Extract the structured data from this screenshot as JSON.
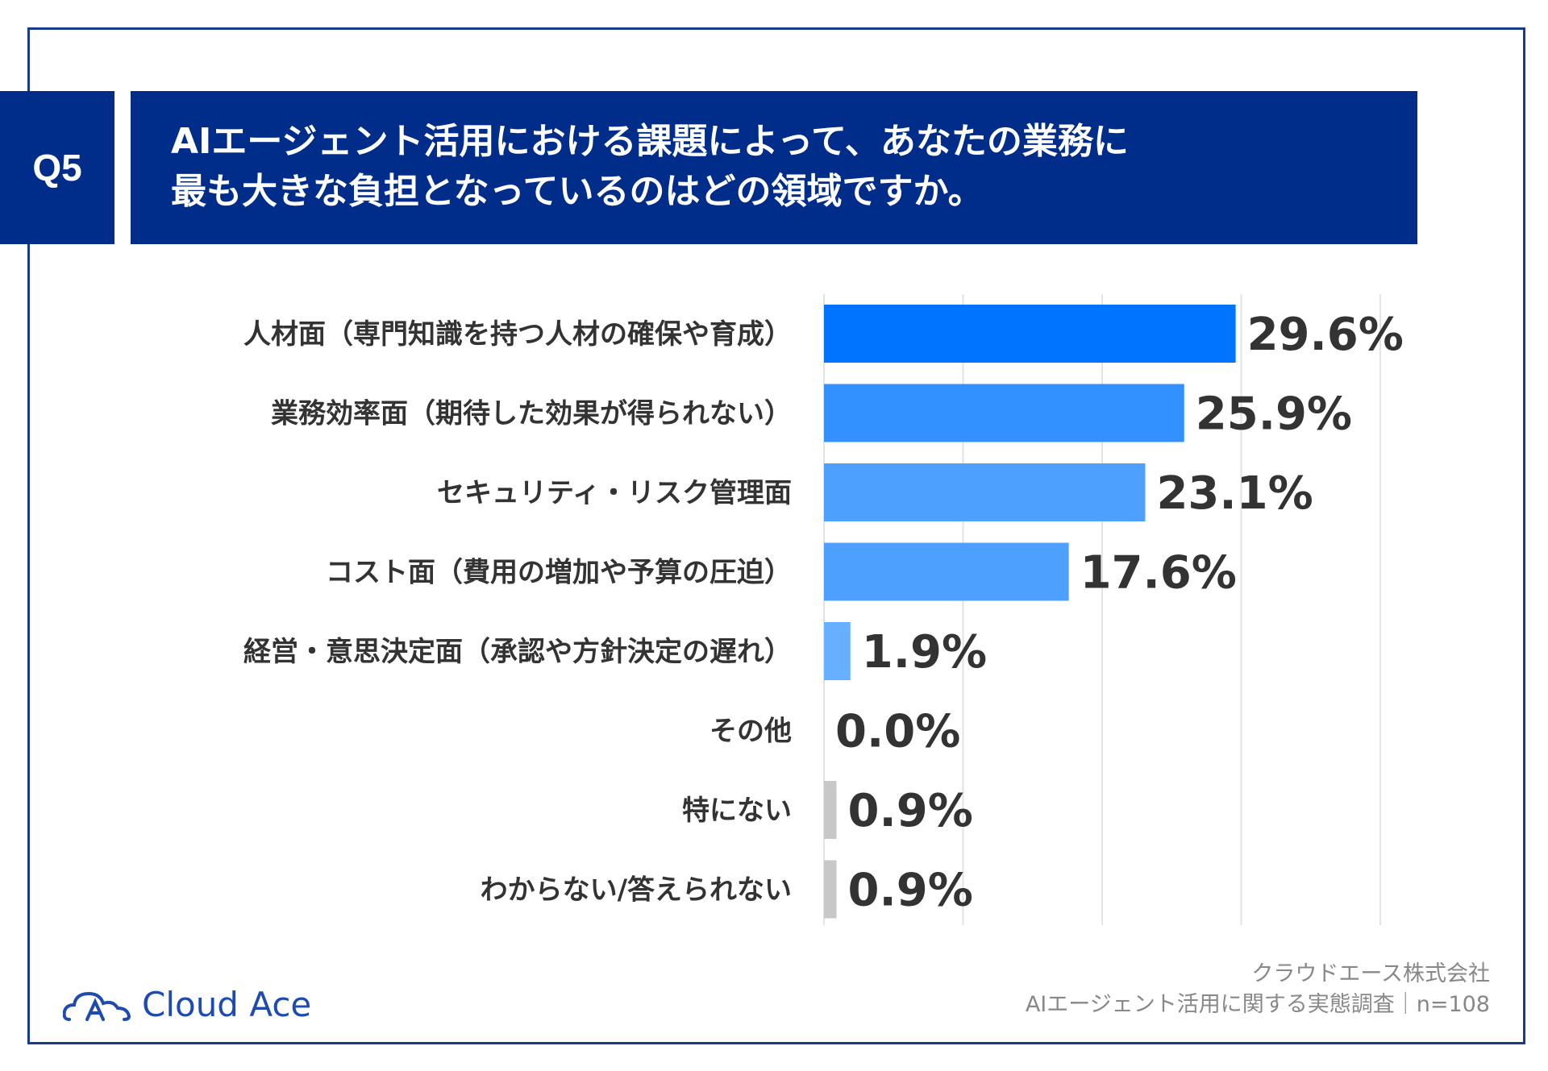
{
  "badge": "Q5",
  "title_lines": [
    "AIエージェント活用における課題によって、あなたの業務に",
    "最も大きな負担となっているのはどの領域ですか。"
  ],
  "footer": {
    "company": "クラウドエース株式会社",
    "survey": "AIエージェント活用に関する実態調査｜n=108"
  },
  "logo": {
    "text": "Cloud Ace",
    "icon": "cloud-logo-icon"
  },
  "colors": {
    "primary": "#002d8a",
    "bar_top": "#0074ff",
    "bar_mid": "#3391ff",
    "bar_light": "#4ea0ff",
    "bar_pale": "#66b0ff",
    "bar_gray": "#c8c8c8",
    "grid": "#e3e3e3"
  },
  "chart_data": {
    "type": "bar",
    "orientation": "horizontal",
    "categories": [
      "人材面（専門知識を持つ人材の確保や育成）",
      "業務効率面（期待した効果が得られない）",
      "セキュリティ・リスク管理面",
      "コスト面（費用の増加や予算の圧迫）",
      "経営・意思決定面（承認や方針決定の遅れ）",
      "その他",
      "特にない",
      "わからない/答えられない"
    ],
    "values": [
      29.6,
      25.9,
      23.1,
      17.6,
      1.9,
      0.0,
      0.9,
      0.9
    ],
    "value_labels": [
      "29.6%",
      "25.9%",
      "23.1%",
      "17.6%",
      "1.9%",
      "0.0%",
      "0.9%",
      "0.9%"
    ],
    "bar_colors": [
      "#0074ff",
      "#3391ff",
      "#4ea0ff",
      "#4ea0ff",
      "#66b0ff",
      "#c8c8c8",
      "#c8c8c8",
      "#c8c8c8"
    ],
    "xlim": [
      0,
      40
    ],
    "grid": true,
    "gridline_values": [
      0,
      10,
      20,
      30,
      40
    ]
  }
}
